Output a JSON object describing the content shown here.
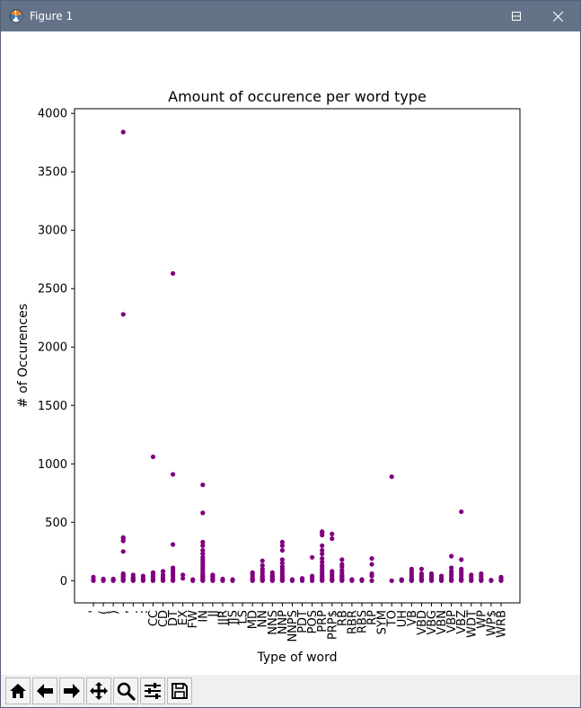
{
  "window": {
    "title": "Figure 1",
    "minimize_icon": "minimize-icon",
    "maximize_icon": "maximize-icon",
    "close_icon": "close-icon"
  },
  "toolbar": {
    "buttons": [
      {
        "name": "home-button",
        "icon": "home-icon"
      },
      {
        "name": "back-button",
        "icon": "arrow-left-icon"
      },
      {
        "name": "forward-button",
        "icon": "arrow-right-icon"
      },
      {
        "name": "pan-button",
        "icon": "move-icon"
      },
      {
        "name": "zoom-button",
        "icon": "magnifier-icon"
      },
      {
        "name": "configure-subplots-button",
        "icon": "sliders-icon"
      },
      {
        "name": "save-button",
        "icon": "floppy-disk-icon"
      }
    ]
  },
  "chart_data": {
    "type": "scatter",
    "title": "Amount of occurence per word type",
    "xlabel": "Type of word",
    "ylabel": "# of Occurences",
    "ylim": [
      -190,
      4040
    ],
    "yticks": [
      0,
      500,
      1000,
      1500,
      2000,
      2500,
      3000,
      3500,
      4000
    ],
    "grid": false,
    "marker_color": "#800080",
    "categories": [
      "''",
      "(",
      ")",
      ",",
      ".",
      ":",
      "CC",
      "CD",
      "DT",
      "EX",
      "FW",
      "IN",
      "JJ",
      "JJR",
      "JJS",
      "LS",
      "MD",
      "NN",
      "NNS",
      "NNP",
      "NNPS",
      "PDT",
      "POS",
      "PRP",
      "PRP$",
      "RB",
      "RBR",
      "RBS",
      "RP",
      "SYM",
      "TO",
      "UH",
      "VB",
      "VBD",
      "VBG",
      "VBN",
      "VBP",
      "VBZ",
      "WDT",
      "WP",
      "WP$",
      "WRB"
    ],
    "tick_labels": [
      "'",
      "(",
      ")",
      ",",
      ".",
      ":",
      "CC",
      "CD",
      "DT",
      "EX",
      "FW",
      "IN",
      "JJ",
      "JJR",
      "JJS",
      "LS",
      "MD",
      "NN",
      "NNS",
      "NNP",
      "NNPS",
      "PDT",
      "POS",
      "PRP",
      "PRP$",
      "RB",
      "RBR",
      "RBS",
      "RP",
      "SYM",
      "TO",
      "UH",
      "VB",
      "VBD",
      "VBG",
      "VBN",
      "VBP",
      "VBZ",
      "WDT",
      "WP",
      "WP$",
      "WRB"
    ],
    "points": [
      {
        "x": "''",
        "y": [
          0,
          10,
          30
        ]
      },
      {
        "x": "(",
        "y": [
          0,
          5,
          15
        ]
      },
      {
        "x": ")",
        "y": [
          0,
          5,
          15
        ]
      },
      {
        "x": ",",
        "y": [
          0,
          5,
          10,
          20,
          30,
          40,
          50,
          60,
          250,
          340,
          360,
          370,
          2280,
          3840
        ]
      },
      {
        "x": ".",
        "y": [
          0,
          5,
          10,
          20,
          30,
          50
        ]
      },
      {
        "x": ":",
        "y": [
          0,
          10,
          20,
          40
        ]
      },
      {
        "x": "CC",
        "y": [
          0,
          5,
          10,
          20,
          40,
          60,
          70,
          1060
        ]
      },
      {
        "x": "CD",
        "y": [
          0,
          5,
          10,
          20,
          30,
          50,
          80
        ]
      },
      {
        "x": "DT",
        "y": [
          0,
          5,
          10,
          20,
          40,
          60,
          80,
          100,
          110,
          310,
          910,
          2630
        ]
      },
      {
        "x": "EX",
        "y": [
          20,
          50
        ]
      },
      {
        "x": "FW",
        "y": [
          0,
          10
        ]
      },
      {
        "x": "IN",
        "y": [
          0,
          5,
          10,
          20,
          30,
          40,
          50,
          60,
          80,
          100,
          120,
          140,
          160,
          180,
          200,
          230,
          260,
          300,
          330,
          580,
          820
        ]
      },
      {
        "x": "JJ",
        "y": [
          0,
          5,
          10,
          20,
          30,
          40,
          50
        ]
      },
      {
        "x": "JJR",
        "y": [
          0,
          5,
          15
        ]
      },
      {
        "x": "JJS",
        "y": [
          0,
          5,
          10
        ]
      },
      {
        "x": "MD",
        "y": [
          0,
          5,
          10,
          20,
          40,
          60,
          70
        ]
      },
      {
        "x": "NN",
        "y": [
          0,
          5,
          10,
          20,
          30,
          40,
          60,
          80,
          100,
          130,
          170
        ]
      },
      {
        "x": "NNS",
        "y": [
          0,
          5,
          10,
          20,
          30,
          40,
          50,
          70
        ]
      },
      {
        "x": "NNP",
        "y": [
          0,
          5,
          10,
          20,
          30,
          40,
          60,
          80,
          100,
          120,
          150,
          180,
          260,
          300,
          330
        ]
      },
      {
        "x": "NNPS",
        "y": [
          0,
          5,
          10
        ]
      },
      {
        "x": "PDT",
        "y": [
          0,
          10,
          20
        ]
      },
      {
        "x": "POS",
        "y": [
          0,
          20,
          40,
          200
        ]
      },
      {
        "x": "PRP",
        "y": [
          0,
          5,
          10,
          20,
          30,
          40,
          50,
          70,
          90,
          110,
          130,
          160,
          190,
          230,
          260,
          300,
          390,
          410,
          420
        ]
      },
      {
        "x": "PRP$",
        "y": [
          0,
          5,
          10,
          20,
          40,
          60,
          80,
          360,
          400
        ]
      },
      {
        "x": "RB",
        "y": [
          0,
          5,
          10,
          20,
          30,
          40,
          50,
          70,
          90,
          120,
          140,
          180
        ]
      },
      {
        "x": "RBR",
        "y": [
          0,
          5,
          10
        ]
      },
      {
        "x": "RBS",
        "y": [
          0,
          10
        ]
      },
      {
        "x": "RP",
        "y": [
          0,
          40,
          60,
          140,
          190
        ]
      },
      {
        "x": "TO",
        "y": [
          0,
          890
        ]
      },
      {
        "x": "UH",
        "y": [
          0,
          5,
          10
        ]
      },
      {
        "x": "VB",
        "y": [
          0,
          5,
          10,
          20,
          40,
          60,
          80,
          100
        ]
      },
      {
        "x": "VBD",
        "y": [
          0,
          5,
          10,
          20,
          40,
          60,
          100
        ]
      },
      {
        "x": "VBG",
        "y": [
          0,
          5,
          10,
          20,
          40,
          60
        ]
      },
      {
        "x": "VBN",
        "y": [
          0,
          5,
          10,
          20,
          40
        ]
      },
      {
        "x": "VBP",
        "y": [
          0,
          5,
          10,
          20,
          40,
          60,
          80,
          110,
          210
        ]
      },
      {
        "x": "VBZ",
        "y": [
          0,
          5,
          10,
          20,
          40,
          60,
          80,
          100,
          180,
          590
        ]
      },
      {
        "x": "WDT",
        "y": [
          0,
          10,
          30,
          50
        ]
      },
      {
        "x": "WP",
        "y": [
          0,
          10,
          20,
          40,
          60
        ]
      },
      {
        "x": "WP$",
        "y": [
          0,
          5
        ]
      },
      {
        "x": "WRB",
        "y": [
          0,
          10,
          20,
          30
        ]
      }
    ]
  }
}
